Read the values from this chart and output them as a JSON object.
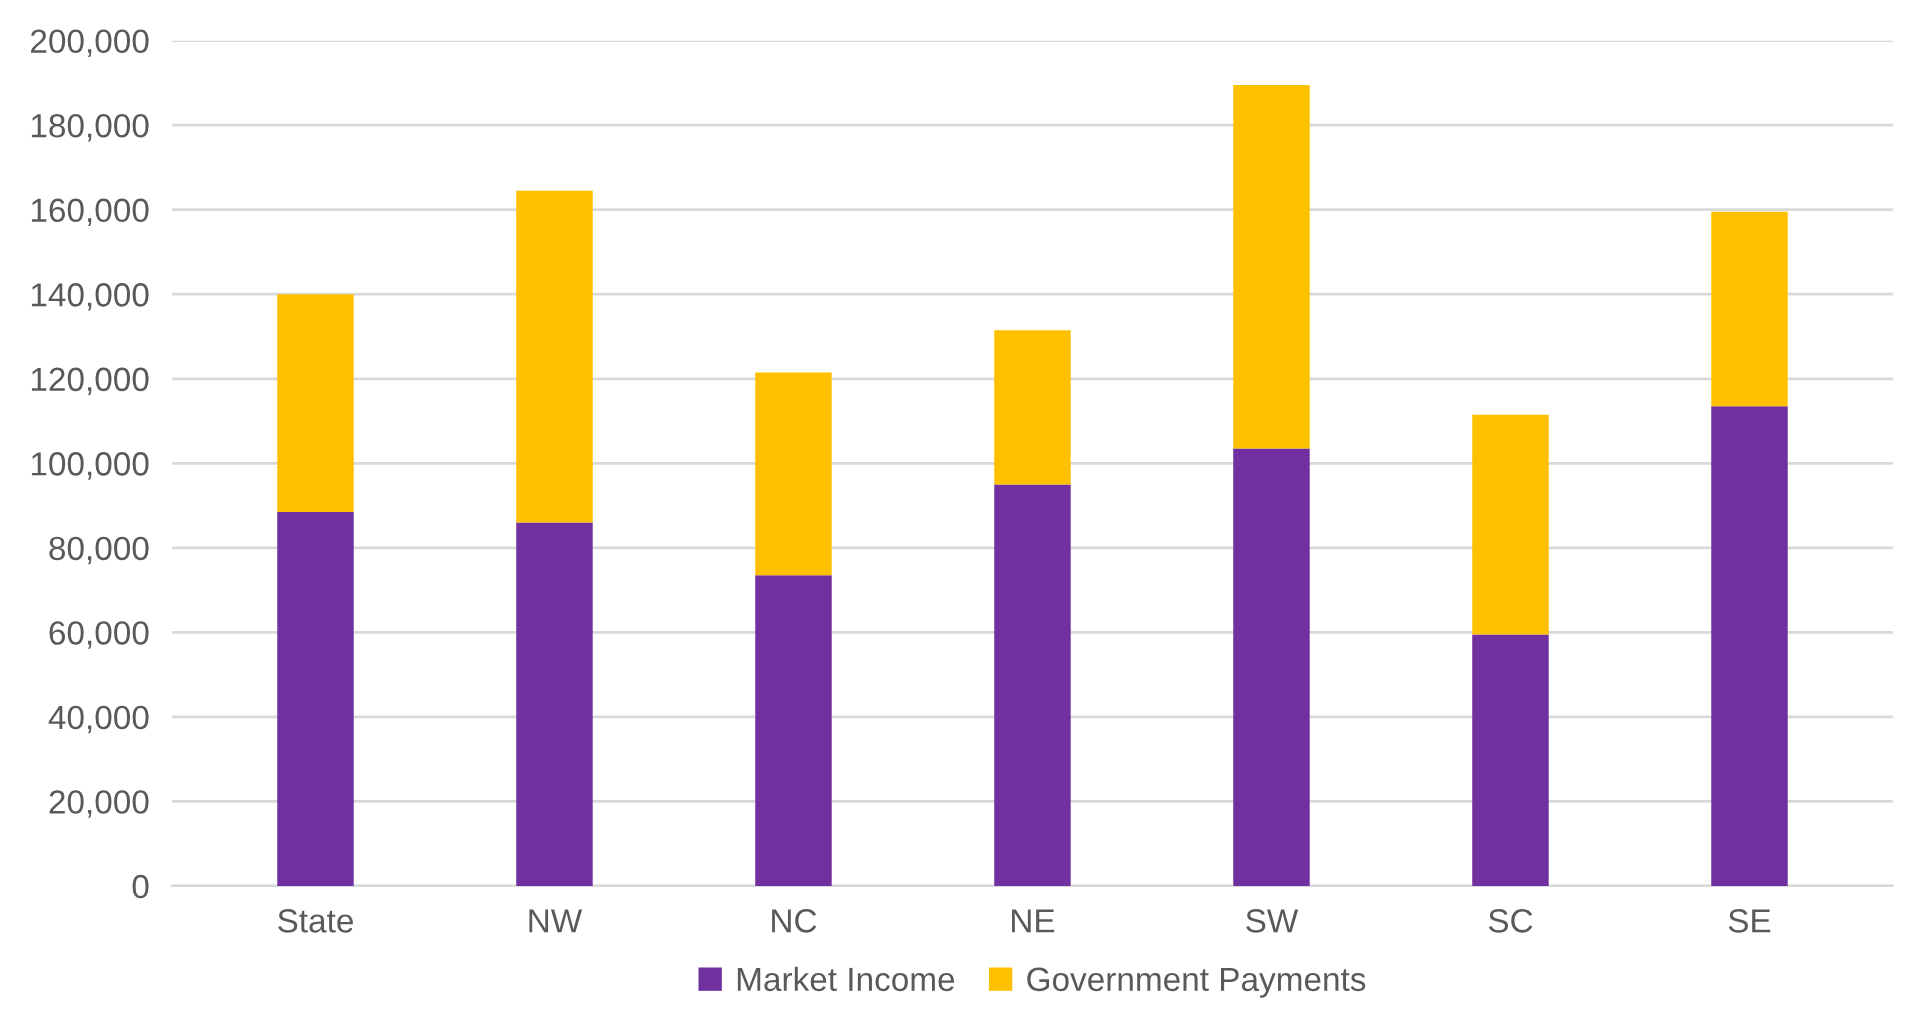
{
  "chart_data": {
    "type": "bar",
    "stacked": true,
    "categories": [
      "State",
      "NW",
      "NC",
      "NE",
      "SW",
      "SC",
      "SE"
    ],
    "series": [
      {
        "name": "Market Income",
        "color": "#7030a0",
        "values": [
          88500,
          86000,
          73500,
          95000,
          103500,
          59500,
          113500
        ]
      },
      {
        "name": "Government Payments",
        "color": "#ffc000",
        "values": [
          51500,
          78500,
          48000,
          36500,
          86000,
          52000,
          46000
        ]
      }
    ],
    "ylim": [
      0,
      200000
    ],
    "yticks": [
      {
        "value": 0,
        "label": "0"
      },
      {
        "value": 20000,
        "label": "20,000"
      },
      {
        "value": 40000,
        "label": "40,000"
      },
      {
        "value": 60000,
        "label": "60,000"
      },
      {
        "value": 80000,
        "label": "80,000"
      },
      {
        "value": 100000,
        "label": "100,000"
      },
      {
        "value": 120000,
        "label": "120,000"
      },
      {
        "value": 140000,
        "label": "140,000"
      },
      {
        "value": 160000,
        "label": "160,000"
      },
      {
        "value": 180000,
        "label": "180,000"
      },
      {
        "value": 200000,
        "label": "200,000"
      }
    ],
    "grid": "y",
    "legend": "bottom"
  }
}
